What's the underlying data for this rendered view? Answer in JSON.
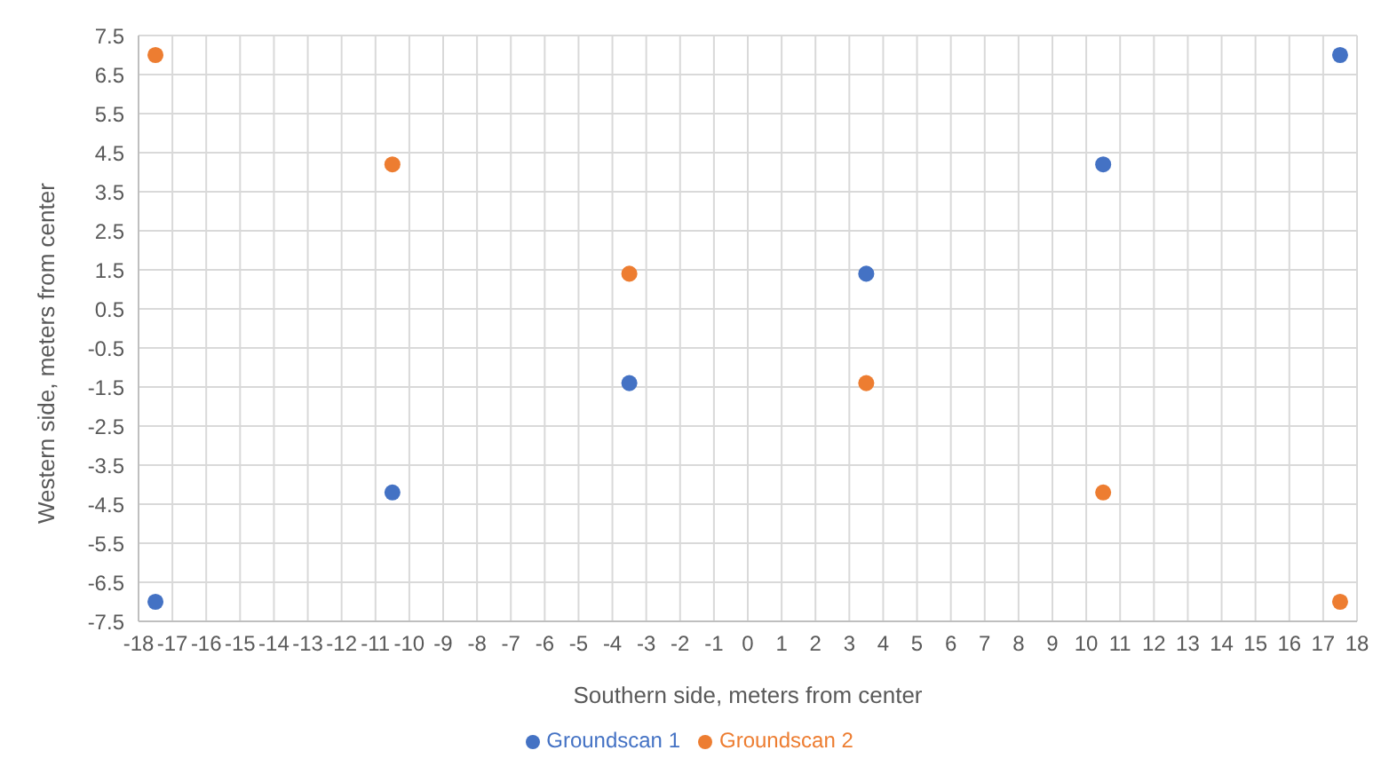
{
  "chart_data": {
    "type": "scatter",
    "xlabel": "Southern side, meters from center",
    "ylabel": "Western side, meters from center",
    "series": [
      {
        "name": "Groundscan 1",
        "color": "#4472c4",
        "x": [
          -17.5,
          -10.5,
          -3.5,
          3.5,
          10.5,
          17.5
        ],
        "values": [
          -7,
          -4.2,
          -1.4,
          1.4,
          4.2,
          7
        ]
      },
      {
        "name": "Groundscan 2",
        "color": "#ed7d31",
        "x": [
          -17.5,
          -10.5,
          -3.5,
          3.5,
          10.5,
          17.5
        ],
        "values": [
          7,
          4.2,
          1.4,
          -1.4,
          -4.2,
          -7
        ]
      }
    ],
    "xlim": [
      -18,
      18
    ],
    "xticks": [
      -18,
      -17,
      -16,
      -15,
      -14,
      -13,
      -12,
      -11,
      -10,
      -9,
      -8,
      -7,
      -6,
      -5,
      -4,
      -3,
      -2,
      -1,
      0,
      1,
      2,
      3,
      4,
      5,
      6,
      7,
      8,
      9,
      10,
      11,
      12,
      13,
      14,
      15,
      16,
      17,
      18
    ],
    "ylim": [
      -7.5,
      7.5
    ],
    "yticks": [
      -7.5,
      -6.5,
      -5.5,
      -4.5,
      -3.5,
      -2.5,
      -1.5,
      -0.5,
      0.5,
      1.5,
      2.5,
      3.5,
      4.5,
      5.5,
      6.5,
      7.5
    ],
    "grid": true,
    "legend": "bottom",
    "marker": "circle"
  }
}
